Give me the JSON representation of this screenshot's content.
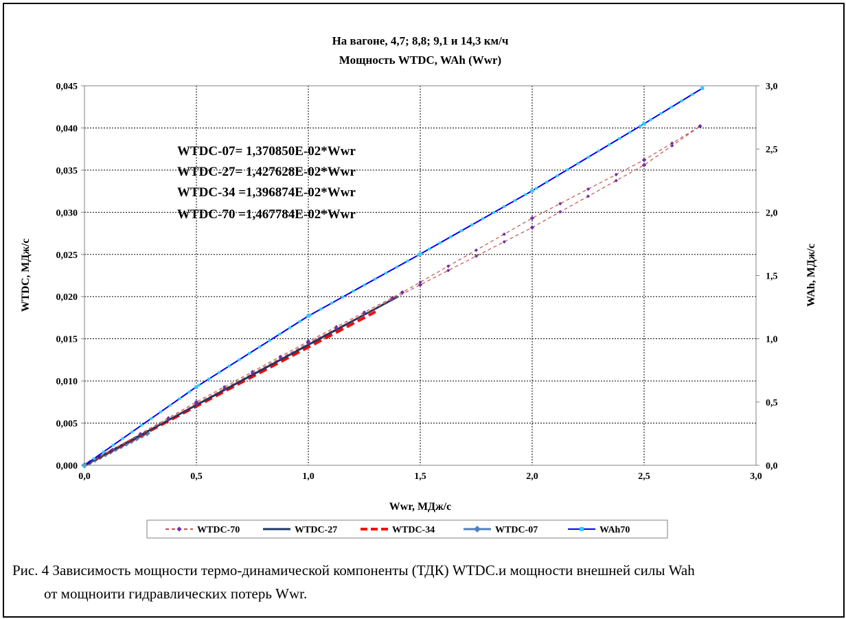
{
  "chart_data": {
    "type": "line",
    "title": [
      "На вагоне, 4,7; 8,8; 9,1 и 14,3 км/ч",
      "Мощность WTDC, WAh  (Wwr)"
    ],
    "xlabel": "Wwr, МДж/с",
    "ylabel": "WTDC, МДж/с",
    "y2label": "WAh,  МДж/с",
    "xlim": [
      0,
      3.0
    ],
    "ylim": [
      0,
      0.045
    ],
    "y2lim": [
      0,
      3.0
    ],
    "x_ticks": [
      "0,0",
      "0,5",
      "1,0",
      "1,5",
      "2,0",
      "2,5",
      "3,0"
    ],
    "y_ticks": [
      "0,000",
      "0,005",
      "0,010",
      "0,015",
      "0,020",
      "0,025",
      "0,030",
      "0,035",
      "0,040",
      "0,045"
    ],
    "y2_ticks": [
      "0,0",
      "0,5",
      "1,0",
      "1,5",
      "2,0",
      "2,5",
      "3,0"
    ],
    "grid": true,
    "legend_position": "bottom",
    "annotations": [
      "WTDC-07= 1,370850E-02*Wwr",
      "WTDC-27= 1,427628E-02*Wwr",
      "WTDC-34 =1,396874E-02*Wwr",
      "WTDC-70 =1,467784E-02*Wwr"
    ],
    "series": [
      {
        "name": "WTDC-70",
        "axis": "left",
        "color": "#c0504d",
        "marker_color": "#7030a0",
        "style": "dashed-dots",
        "points": [
          [
            0.0,
            0.0
          ],
          [
            0.5,
            0.0075
          ],
          [
            1.0,
            0.0147
          ],
          [
            1.42,
            0.0205
          ],
          [
            2.0,
            0.0293
          ],
          [
            2.5,
            0.0362
          ],
          [
            2.75,
            0.0402
          ],
          [
            2.5,
            0.0356
          ],
          [
            2.0,
            0.0282
          ],
          [
            1.5,
            0.0214
          ],
          [
            1.0,
            0.0145
          ],
          [
            0.5,
            0.0073
          ],
          [
            0.0,
            0.0
          ]
        ]
      },
      {
        "name": "WTDC-27",
        "axis": "left",
        "color": "#1f3864",
        "style": "solid-thick",
        "points": [
          [
            0.0,
            0.0
          ],
          [
            1.4,
            0.02
          ]
        ]
      },
      {
        "name": "WTDC-34",
        "axis": "left",
        "color": "#ff0000",
        "style": "dashed-thick",
        "points": [
          [
            0.0,
            0.0
          ],
          [
            1.3,
            0.0182
          ]
        ]
      },
      {
        "name": "WTDC-07",
        "axis": "left",
        "color": "#4f81bd",
        "style": "solid-diamond",
        "points": [
          [
            0.0,
            0.0
          ],
          [
            0.28,
            0.0038
          ]
        ]
      },
      {
        "name": "WAh70",
        "axis": "right",
        "color": "#0000ff",
        "marker_color": "#33ccff",
        "style": "solid-markers",
        "points": [
          [
            0.0,
            0.0
          ],
          [
            0.5,
            0.62
          ],
          [
            1.0,
            1.18
          ],
          [
            1.5,
            1.67
          ],
          [
            2.0,
            2.17
          ],
          [
            2.5,
            2.7
          ],
          [
            2.76,
            2.98
          ]
        ]
      }
    ]
  },
  "caption": {
    "line1": "Рис. 4  Зависимость мощности термо-динамической компоненты (ТДК) WTDC.и мощности внешней силы Wah",
    "line2": "от мощноити гидравлических потерь Wwr."
  }
}
